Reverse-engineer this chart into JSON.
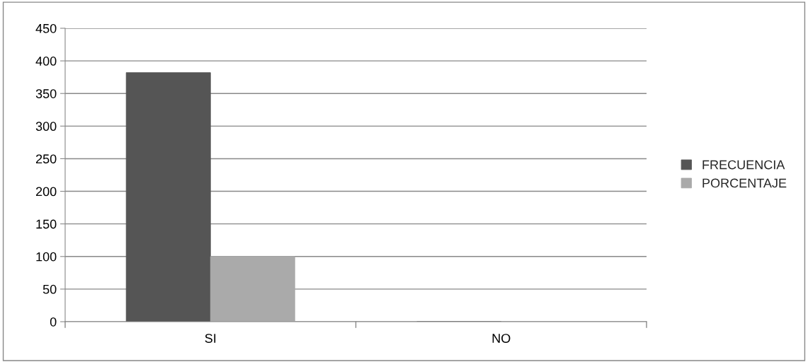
{
  "chart_data": {
    "type": "bar",
    "categories": [
      "SI",
      "NO"
    ],
    "series": [
      {
        "name": "FRECUENCIA",
        "color": "#555555",
        "values": [
          382,
          0
        ]
      },
      {
        "name": "PORCENTAJE",
        "color": "#aaaaaa",
        "values": [
          100,
          0
        ]
      }
    ],
    "ylim": [
      0,
      450
    ],
    "yticks": [
      0,
      50,
      100,
      150,
      200,
      250,
      300,
      350,
      400,
      450
    ],
    "grid": "y",
    "legend": "right"
  }
}
